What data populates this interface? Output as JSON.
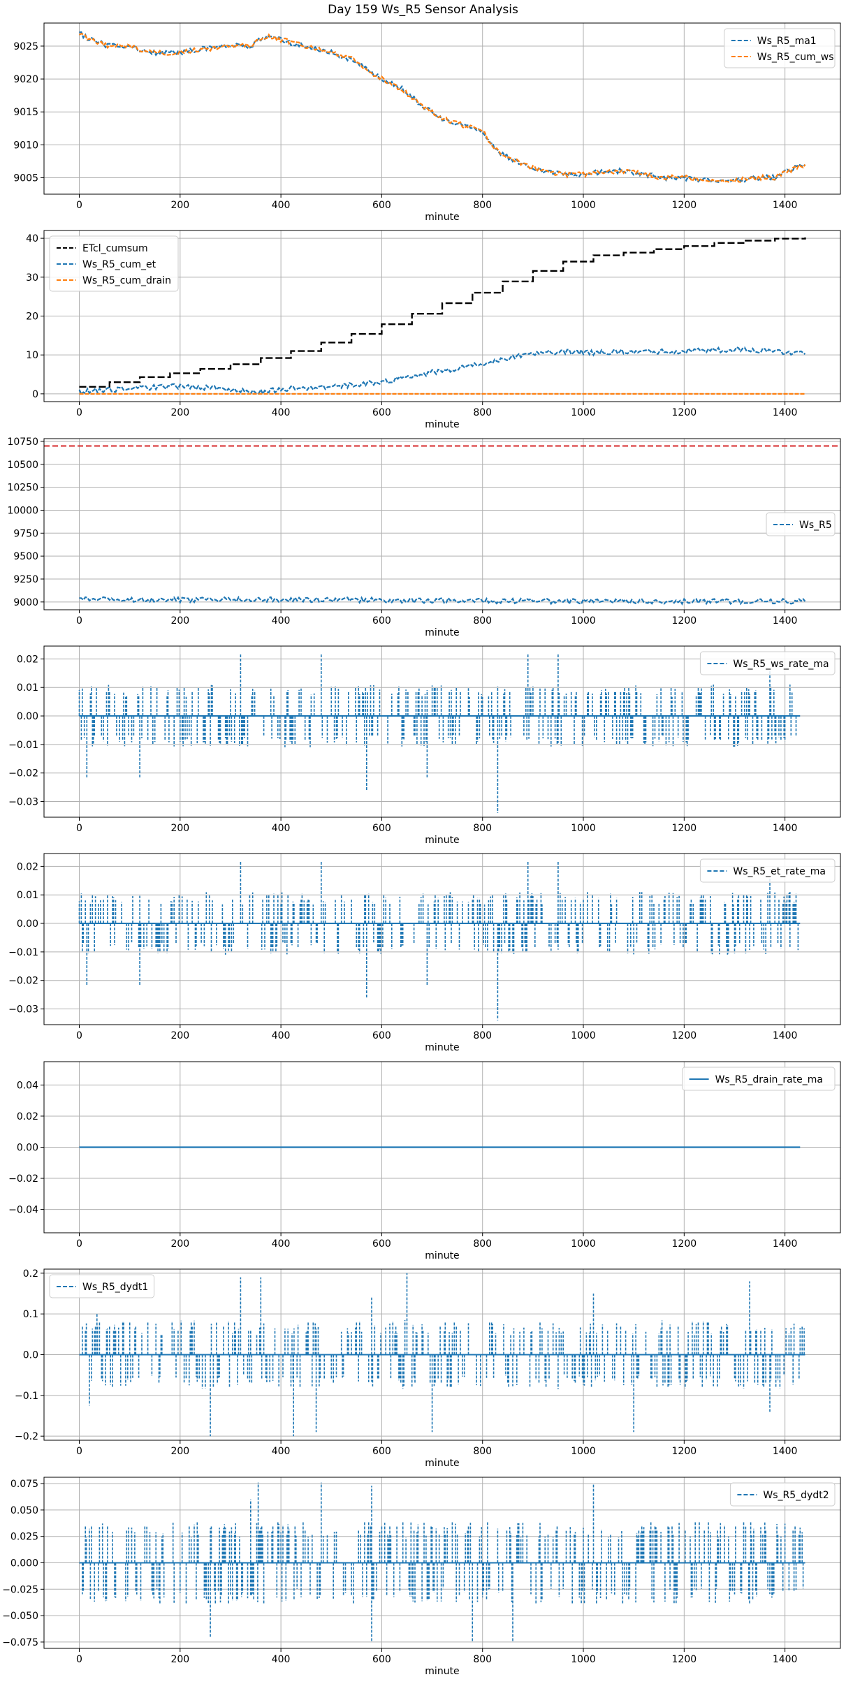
{
  "figure_title": "Day 159 Ws_R5 Sensor Analysis",
  "colors": {
    "blue": "#1f77b4",
    "orange": "#ff7f0e",
    "black": "#000000",
    "red": "#d62728",
    "grid": "#b0b0b0"
  },
  "chart_data": [
    {
      "type": "line",
      "xlabel": "minute",
      "xlim": [
        -70,
        1510
      ],
      "xticks": [
        0,
        200,
        400,
        600,
        800,
        1000,
        1200,
        1400
      ],
      "ylim": [
        9002.5,
        9028.5
      ],
      "yticks": [
        9005,
        9010,
        9015,
        9020,
        9025
      ],
      "legend": "top-right",
      "series": [
        {
          "name": "Ws_R5_ma1",
          "color": "#1f77b4",
          "style": "dashed",
          "x": [
            0,
            20,
            60,
            100,
            140,
            200,
            240,
            300,
            340,
            360,
            380,
            420,
            480,
            540,
            580,
            600,
            640,
            680,
            720,
            760,
            800,
            820,
            840,
            880,
            920,
            960,
            1000,
            1040,
            1080,
            1120,
            1160,
            1200,
            1260,
            1300,
            1340,
            1380,
            1420,
            1440
          ],
          "y": [
            9027,
            9026,
            9025,
            9025,
            9024,
            9024,
            9024.5,
            9025,
            9025,
            9026,
            9026.5,
            9025.5,
            9024.5,
            9023,
            9021,
            9020,
            9018.5,
            9016,
            9014,
            9013,
            9012,
            9010,
            9008.5,
            9007,
            9006,
            9005.5,
            9005.5,
            9006,
            9006,
            9005.5,
            9005,
            9005,
            9004.5,
            9004.5,
            9005,
            9005,
            9006.5,
            9007
          ]
        },
        {
          "name": "Ws_R5_cum_ws",
          "color": "#ff7f0e",
          "style": "dashed",
          "x": [
            0,
            20,
            60,
            100,
            140,
            200,
            240,
            300,
            340,
            360,
            380,
            420,
            480,
            540,
            580,
            600,
            640,
            680,
            720,
            760,
            800,
            820,
            840,
            880,
            920,
            960,
            1000,
            1040,
            1080,
            1120,
            1160,
            1200,
            1260,
            1300,
            1340,
            1380,
            1420,
            1440
          ],
          "y": [
            9027,
            9026,
            9025,
            9025,
            9024,
            9024,
            9024.5,
            9025,
            9025,
            9026,
            9026.5,
            9025.5,
            9024.5,
            9023,
            9021,
            9020,
            9018.5,
            9016,
            9014,
            9013,
            9012,
            9010,
            9008.5,
            9007,
            9006,
            9005.5,
            9005.5,
            9006,
            9006,
            9005.5,
            9005,
            9005,
            9004.5,
            9004.5,
            9005,
            9005,
            9006.5,
            9007
          ]
        }
      ]
    },
    {
      "type": "line",
      "xlabel": "minute",
      "xlim": [
        -70,
        1510
      ],
      "xticks": [
        0,
        200,
        400,
        600,
        800,
        1000,
        1200,
        1400
      ],
      "ylim": [
        -2.0,
        42.0
      ],
      "yticks": [
        0,
        10,
        20,
        30,
        40
      ],
      "legend": "top-left",
      "series": [
        {
          "name": "ETcl_cumsum",
          "color": "#000000",
          "style": "dashed",
          "step": true,
          "x": [
            0,
            60,
            120,
            180,
            240,
            300,
            360,
            420,
            480,
            540,
            600,
            660,
            720,
            780,
            840,
            900,
            960,
            1020,
            1080,
            1140,
            1200,
            1260,
            1320,
            1380,
            1440
          ],
          "y": [
            1.8,
            3.0,
            4.3,
            5.3,
            6.4,
            7.6,
            9.2,
            11.0,
            13.2,
            15.4,
            17.9,
            20.6,
            23.3,
            26.0,
            28.9,
            31.6,
            34.0,
            35.6,
            36.3,
            37.2,
            38.0,
            38.8,
            39.4,
            39.9,
            40.2
          ]
        },
        {
          "name": "Ws_R5_cum_et",
          "color": "#1f77b4",
          "style": "dashed",
          "x": [
            0,
            60,
            120,
            200,
            260,
            320,
            360,
            400,
            460,
            520,
            580,
            640,
            700,
            760,
            820,
            860,
            900,
            960,
            1020,
            1080,
            1140,
            1200,
            1260,
            1320,
            1380,
            1440
          ],
          "y": [
            0.5,
            1.0,
            1.5,
            2.0,
            1.5,
            0.8,
            0.5,
            1.2,
            1.5,
            2.0,
            2.8,
            4.0,
            5.5,
            6.8,
            8.2,
            9.5,
            10.3,
            10.8,
            10.6,
            10.8,
            10.9,
            11.0,
            11.2,
            11.4,
            11.0,
            10.2
          ]
        },
        {
          "name": "Ws_R5_cum_drain",
          "color": "#ff7f0e",
          "style": "dashed",
          "x": [
            0,
            1440
          ],
          "y": [
            0,
            0
          ]
        }
      ]
    },
    {
      "type": "line",
      "xlabel": "minute",
      "xlim": [
        -70,
        1510
      ],
      "xticks": [
        0,
        200,
        400,
        600,
        800,
        1000,
        1200,
        1400
      ],
      "ylim": [
        8915,
        10780
      ],
      "yticks": [
        9000,
        9250,
        9500,
        9750,
        10000,
        10250,
        10500,
        10750
      ],
      "legend": "center-right",
      "hline": {
        "y": 10700,
        "color": "#d62728",
        "style": "dashed"
      },
      "series": [
        {
          "name": "Ws_R5",
          "color": "#1f77b4",
          "style": "dashed",
          "x": [
            0,
            200,
            400,
            600,
            800,
            1000,
            1200,
            1440
          ],
          "y": [
            9027,
            9024,
            9025,
            9020,
            9012,
            9005.5,
            9005,
            9007
          ]
        }
      ]
    },
    {
      "type": "line",
      "xlabel": "minute",
      "xlim": [
        -70,
        1510
      ],
      "xticks": [
        0,
        200,
        400,
        600,
        800,
        1000,
        1200,
        1400
      ],
      "ylim": [
        -0.0355,
        0.0245
      ],
      "yticks": [
        -0.03,
        -0.02,
        -0.01,
        0.0,
        0.01,
        0.02
      ],
      "legend": "top-right",
      "series": [
        {
          "name": "Ws_R5_ws_rate_ma",
          "color": "#1f77b4",
          "style": "dashed",
          "noise": "rate_a",
          "amp": 0.011,
          "tail": 1430,
          "spikes": [
            [
              15,
              -0.022
            ],
            [
              120,
              -0.022
            ],
            [
              320,
              0.022
            ],
            [
              480,
              0.022
            ],
            [
              570,
              -0.026
            ],
            [
              690,
              -0.022
            ],
            [
              830,
              -0.034
            ],
            [
              890,
              0.022
            ],
            [
              950,
              0.022
            ],
            [
              1370,
              0.016
            ],
            [
              1410,
              0.011
            ]
          ]
        }
      ]
    },
    {
      "type": "line",
      "xlabel": "minute",
      "xlim": [
        -70,
        1510
      ],
      "xticks": [
        0,
        200,
        400,
        600,
        800,
        1000,
        1200,
        1400
      ],
      "ylim": [
        -0.0355,
        0.0245
      ],
      "yticks": [
        -0.03,
        -0.02,
        -0.01,
        0.0,
        0.01,
        0.02
      ],
      "legend": "top-right",
      "series": [
        {
          "name": "Ws_R5_et_rate_ma",
          "color": "#1f77b4",
          "style": "dashed",
          "noise": "rate_b",
          "amp": 0.011,
          "tail": 1430,
          "spikes": [
            [
              15,
              -0.022
            ],
            [
              120,
              -0.022
            ],
            [
              320,
              0.022
            ],
            [
              480,
              0.022
            ],
            [
              570,
              -0.026
            ],
            [
              690,
              -0.022
            ],
            [
              830,
              -0.034
            ],
            [
              890,
              0.022
            ],
            [
              950,
              0.022
            ],
            [
              1370,
              0.016
            ],
            [
              1410,
              0.011
            ]
          ]
        }
      ]
    },
    {
      "type": "line",
      "xlabel": "minute",
      "xlim": [
        -70,
        1510
      ],
      "xticks": [
        0,
        200,
        400,
        600,
        800,
        1000,
        1200,
        1400
      ],
      "ylim": [
        -0.055,
        0.055
      ],
      "yticks": [
        -0.04,
        -0.02,
        0.0,
        0.02,
        0.04
      ],
      "legend": "top-right",
      "series": [
        {
          "name": "Ws_R5_drain_rate_ma",
          "color": "#1f77b4",
          "style": "solid",
          "x": [
            0,
            1430
          ],
          "y": [
            0,
            0
          ]
        }
      ]
    },
    {
      "type": "line",
      "xlabel": "minute",
      "xlim": [
        -70,
        1510
      ],
      "xticks": [
        0,
        200,
        400,
        600,
        800,
        1000,
        1200,
        1400
      ],
      "ylim": [
        -0.21,
        0.21
      ],
      "yticks": [
        -0.2,
        -0.1,
        0.0,
        0.1,
        0.2
      ],
      "legend": "top-left",
      "series": [
        {
          "name": "Ws_R5_dydt1",
          "color": "#1f77b4",
          "style": "dashed",
          "noise": "deriv_a",
          "amp": 0.085,
          "tail": 1440,
          "spikes": [
            [
              20,
              -0.125
            ],
            [
              35,
              0.1
            ],
            [
              260,
              -0.2
            ],
            [
              320,
              0.19
            ],
            [
              360,
              0.19
            ],
            [
              425,
              -0.2
            ],
            [
              470,
              -0.19
            ],
            [
              580,
              0.14
            ],
            [
              650,
              0.2
            ],
            [
              700,
              -0.19
            ],
            [
              1020,
              0.15
            ],
            [
              1100,
              -0.19
            ],
            [
              1330,
              0.18
            ],
            [
              1370,
              -0.14
            ]
          ]
        }
      ]
    },
    {
      "type": "line",
      "xlabel": "minute",
      "xlim": [
        -70,
        1510
      ],
      "xticks": [
        0,
        200,
        400,
        600,
        800,
        1000,
        1200,
        1400
      ],
      "ylim": [
        -0.081,
        0.081
      ],
      "yticks": [
        -0.075,
        -0.05,
        -0.025,
        0.0,
        0.025,
        0.05,
        0.075
      ],
      "legend": "top-right",
      "series": [
        {
          "name": "Ws_R5_dydt2",
          "color": "#1f77b4",
          "style": "dashed",
          "noise": "deriv_b",
          "amp": 0.04,
          "tail": 1440,
          "spikes": [
            [
              260,
              -0.07
            ],
            [
              340,
              0.06
            ],
            [
              355,
              0.076
            ],
            [
              480,
              0.076
            ],
            [
              580,
              -0.075
            ],
            [
              580,
              0.073
            ],
            [
              780,
              -0.075
            ],
            [
              860,
              -0.075
            ],
            [
              1020,
              0.074
            ]
          ]
        }
      ]
    }
  ]
}
